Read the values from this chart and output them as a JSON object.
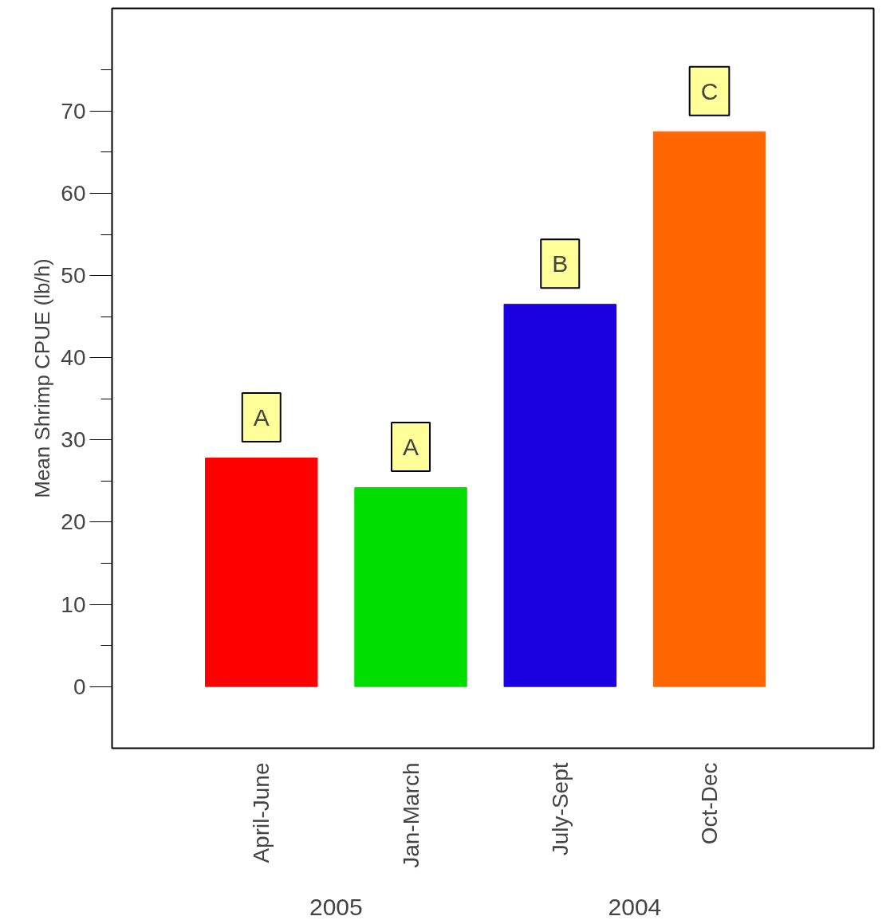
{
  "chart_data": {
    "type": "bar",
    "ylabel": "Mean Shrimp CPUE (lb/h)",
    "categories": [
      "April-June",
      "Jan-March",
      "July-Sept",
      "Oct-Dec"
    ],
    "values": [
      27.8,
      24.2,
      46.5,
      67.5
    ],
    "colors": [
      "#ff0000",
      "#00dd00",
      "#1a00e0",
      "#ff6600"
    ],
    "ylim": [
      -7.5,
      82.5
    ],
    "yticks": [
      0,
      10,
      20,
      30,
      40,
      50,
      60,
      70
    ],
    "grid": false,
    "annotations": [
      "A",
      "A",
      "B",
      "C",
      "2005",
      "2004"
    ]
  }
}
